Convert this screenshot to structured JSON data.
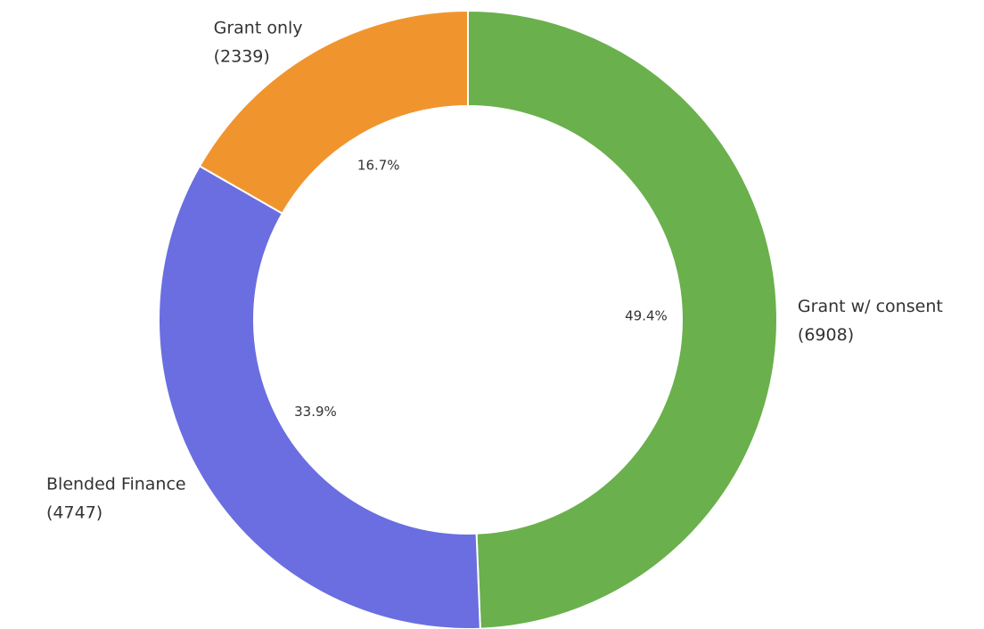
{
  "chart_data": {
    "type": "donut",
    "categories": [
      "Grant w/ consent",
      "Blended Finance",
      "Grant only"
    ],
    "values": [
      6908,
      4747,
      2339
    ],
    "value_labels": [
      "(6908)",
      "(4747)",
      "(2339)"
    ],
    "percent_labels": [
      "49.4%",
      "33.9%",
      "16.7%"
    ],
    "colors": [
      "#6ab04c",
      "#6a6ee0",
      "#f0952e"
    ]
  }
}
